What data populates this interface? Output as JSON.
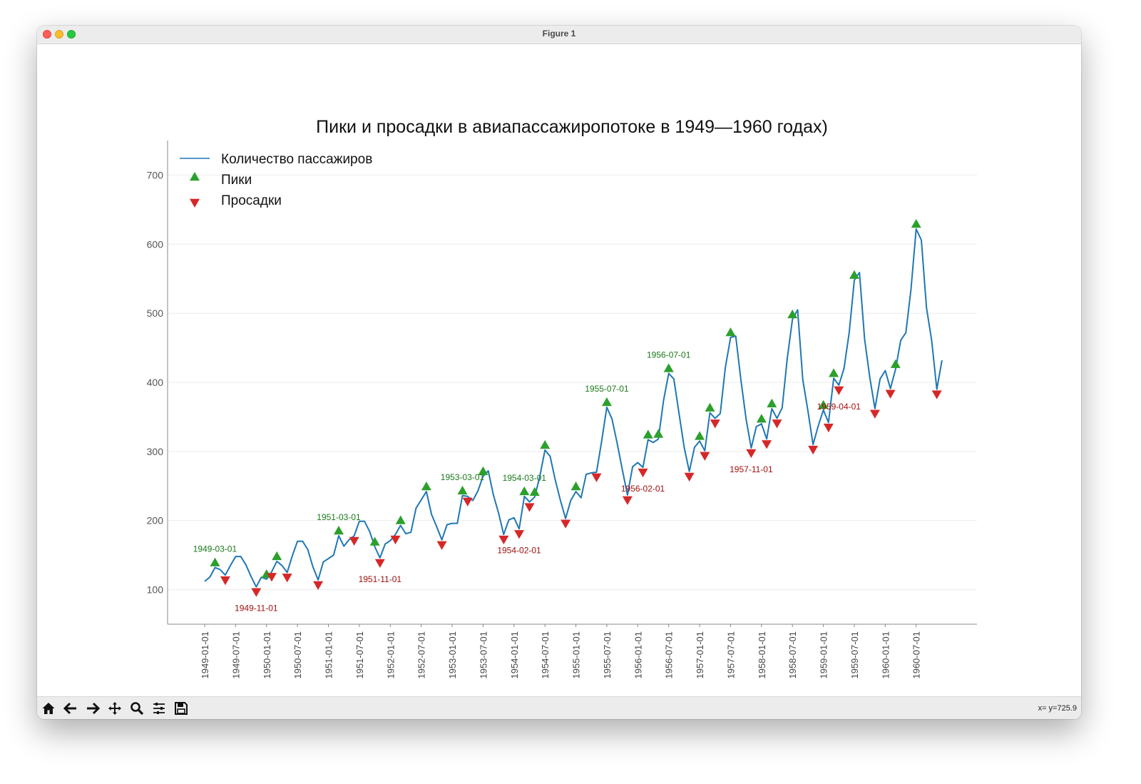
{
  "window": {
    "title": "Figure 1"
  },
  "toolbar": {
    "buttons": [
      "home-icon",
      "back-icon",
      "forward-icon",
      "pan-icon",
      "zoom-icon",
      "configure-icon",
      "save-icon"
    ],
    "coords": "x= y=725.9"
  },
  "chart_data": {
    "type": "line",
    "title": "Пики и просадки в авиапассажиропотоке в 1949—1960 годах)",
    "xlabel": "",
    "ylabel": "",
    "ylim": [
      50,
      750
    ],
    "yticks": [
      100,
      200,
      300,
      400,
      500,
      600,
      700
    ],
    "grid": true,
    "legend_position": "top-left",
    "legend": [
      "Количество пассажиров",
      "Пики",
      "Просадки"
    ],
    "start_month": "1949-01",
    "xtick_labels": [
      "1949-01-01",
      "1949-07-01",
      "1950-01-01",
      "1950-07-01",
      "1951-01-01",
      "1951-07-01",
      "1952-01-01",
      "1952-07-01",
      "1953-01-01",
      "1953-07-01",
      "1954-01-01",
      "1954-07-01",
      "1955-01-01",
      "1955-07-01",
      "1956-01-01",
      "1956-07-01",
      "1957-01-01",
      "1957-07-01",
      "1958-01-01",
      "1958-07-01",
      "1959-01-01",
      "1959-07-01",
      "1960-01-01",
      "1960-07-01"
    ],
    "series": [
      {
        "name": "Количество пассажиров",
        "color": "#1f77b4",
        "values": [
          112,
          118,
          132,
          129,
          121,
          135,
          148,
          148,
          136,
          119,
          104,
          118,
          115,
          126,
          141,
          135,
          125,
          149,
          170,
          170,
          158,
          133,
          114,
          140,
          145,
          150,
          178,
          163,
          172,
          178,
          199,
          199,
          184,
          162,
          146,
          166,
          171,
          180,
          193,
          181,
          183,
          218,
          230,
          242,
          209,
          191,
          172,
          194,
          196,
          196,
          236,
          235,
          229,
          243,
          264,
          272,
          237,
          211,
          180,
          201,
          204,
          188,
          235,
          227,
          234,
          264,
          302,
          293,
          259,
          229,
          203,
          229,
          242,
          233,
          267,
          269,
          270,
          315,
          364,
          347,
          312,
          274,
          237,
          278,
          284,
          277,
          317,
          313,
          318,
          374,
          413,
          405,
          355,
          306,
          271,
          306,
          315,
          301,
          356,
          348,
          355,
          422,
          465,
          467,
          404,
          347,
          305,
          336,
          340,
          318,
          362,
          348,
          363,
          435,
          491,
          505,
          404,
          359,
          310,
          337,
          360,
          342,
          406,
          396,
          420,
          472,
          548,
          559,
          463,
          407,
          362,
          405,
          417,
          391,
          419,
          461,
          472,
          535,
          622,
          606,
          508,
          461,
          390,
          432
        ]
      }
    ],
    "peaks": {
      "name": "Пики",
      "color": "#2ca02c",
      "indices": [
        2,
        12,
        14,
        26,
        33,
        38,
        43,
        50,
        54,
        62,
        64,
        66,
        72,
        78,
        86,
        88,
        90,
        96,
        98,
        102,
        108,
        110,
        114,
        120,
        122,
        126,
        134,
        138
      ]
    },
    "troughs": {
      "name": "Просадки",
      "color": "#d62728",
      "indices": [
        4,
        10,
        13,
        16,
        22,
        29,
        34,
        37,
        46,
        51,
        58,
        61,
        63,
        70,
        76,
        82,
        85,
        94,
        97,
        99,
        106,
        109,
        111,
        118,
        121,
        123,
        130,
        133,
        142
      ]
    },
    "annotations": [
      {
        "label": "1949-03-01",
        "kind": "peak"
      },
      {
        "label": "1949-11-01",
        "kind": "trough"
      },
      {
        "label": "1951-03-01",
        "kind": "peak"
      },
      {
        "label": "1951-11-01",
        "kind": "trough"
      },
      {
        "label": "1953-03-01",
        "kind": "peak"
      },
      {
        "label": "1954-02-01",
        "kind": "trough"
      },
      {
        "label": "1954-03-01",
        "kind": "peak"
      },
      {
        "label": "1955-07-01",
        "kind": "peak"
      },
      {
        "label": "1956-02-01",
        "kind": "trough"
      },
      {
        "label": "1956-07-01",
        "kind": "peak"
      },
      {
        "label": "1957-11-01",
        "kind": "trough"
      },
      {
        "label": "1959-04-01",
        "kind": "trough"
      }
    ]
  }
}
